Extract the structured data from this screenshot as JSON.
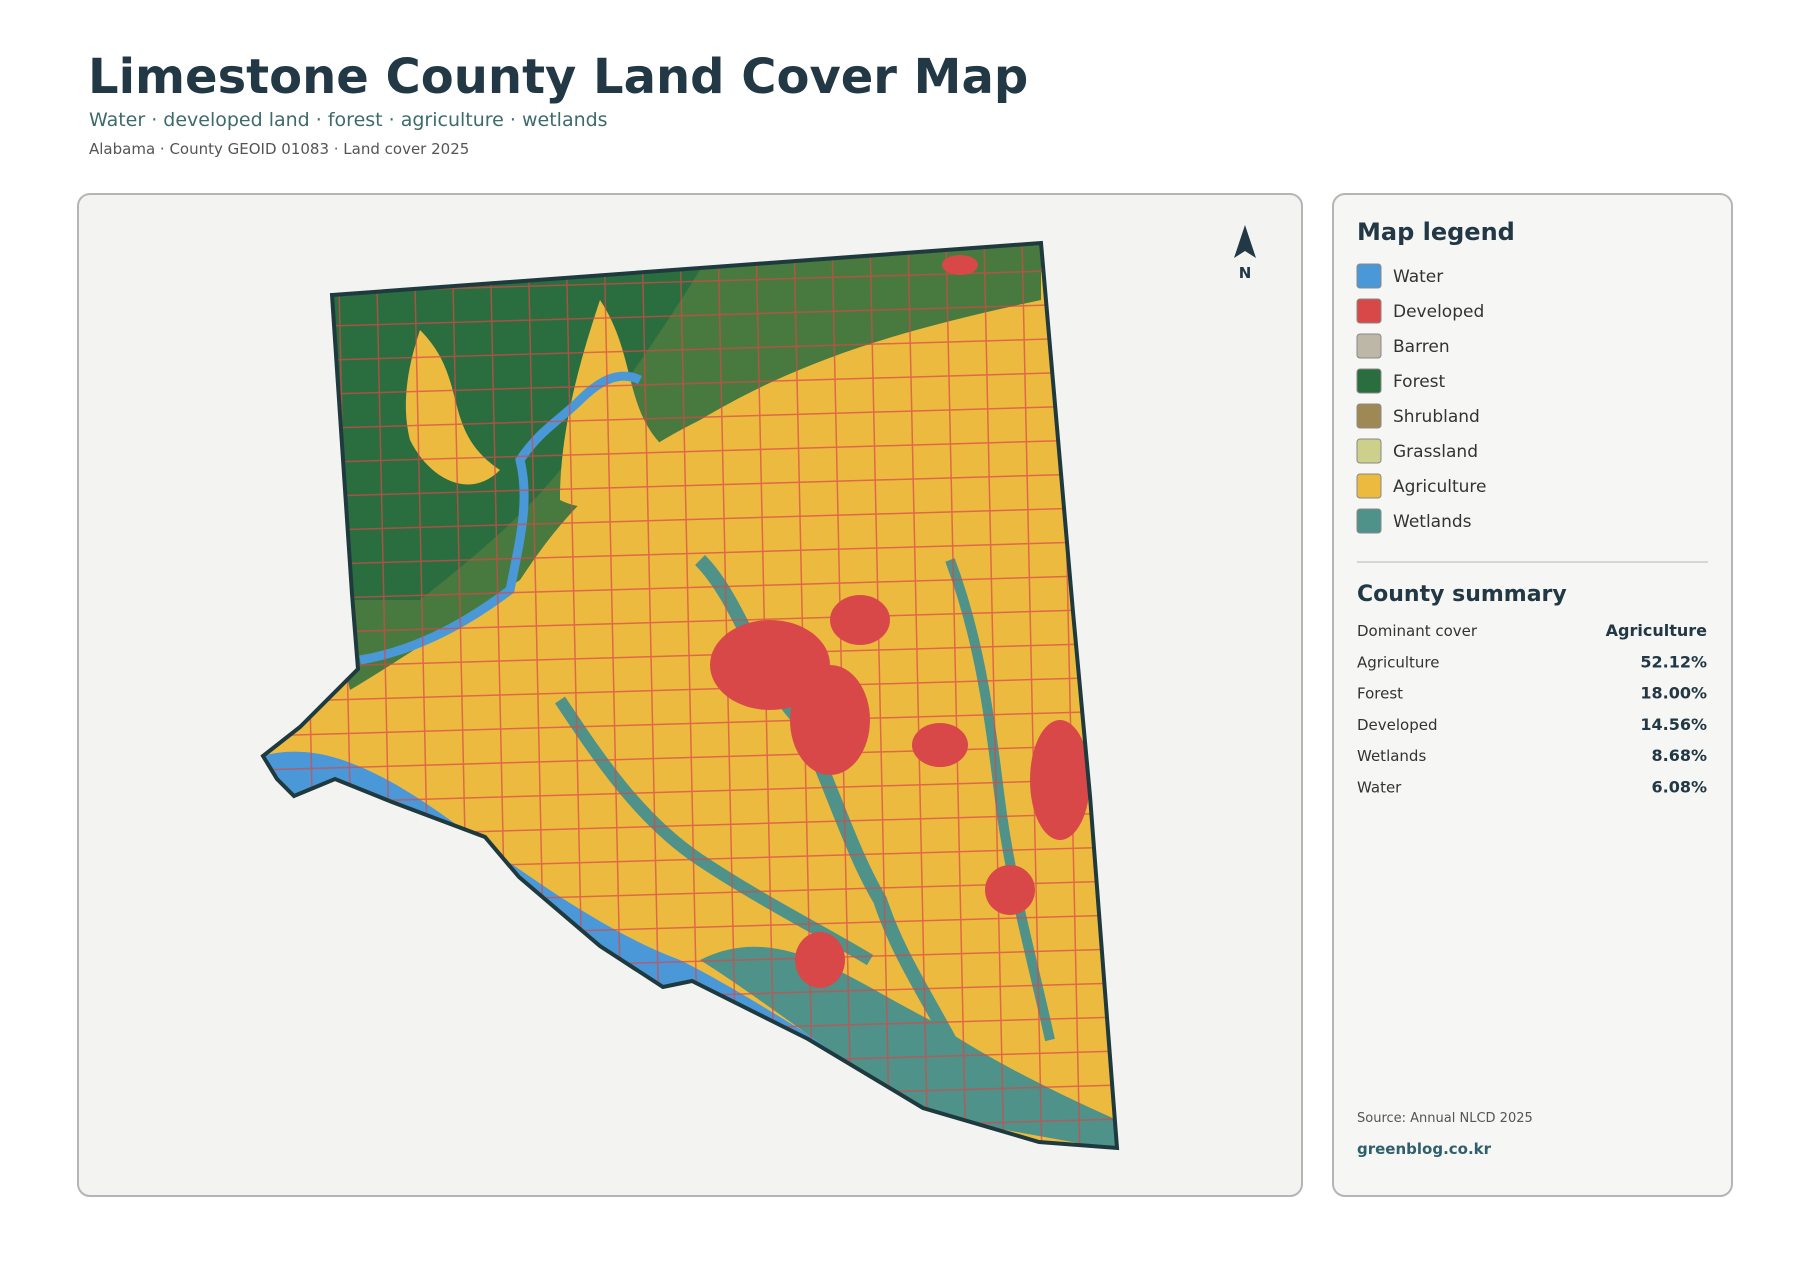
{
  "header": {
    "title": "Limestone County Land Cover Map",
    "subtitle": "Water · developed land · forest · agriculture · wetlands",
    "meta": "Alabama · County GEOID 01083 · Land cover 2025"
  },
  "map": {
    "north_label": "N"
  },
  "legend": {
    "title": "Map legend",
    "items": [
      {
        "label": "Water",
        "color": "#4a98d8"
      },
      {
        "label": "Developed",
        "color": "#d94848"
      },
      {
        "label": "Barren",
        "color": "#bcb7a6"
      },
      {
        "label": "Forest",
        "color": "#2a6e40"
      },
      {
        "label": "Shrubland",
        "color": "#a08855"
      },
      {
        "label": "Grassland",
        "color": "#cdd08a"
      },
      {
        "label": "Agriculture",
        "color": "#edba40"
      },
      {
        "label": "Wetlands",
        "color": "#4e9289"
      }
    ]
  },
  "summary": {
    "title": "County summary",
    "rows": [
      {
        "label": "Dominant cover",
        "value": "Agriculture"
      },
      {
        "label": "Agriculture",
        "value": "52.12%"
      },
      {
        "label": "Forest",
        "value": "18.00%"
      },
      {
        "label": "Developed",
        "value": "14.56%"
      },
      {
        "label": "Wetlands",
        "value": "8.68%"
      },
      {
        "label": "Water",
        "value": "6.08%"
      }
    ]
  },
  "footer": {
    "source": "Source: Annual NLCD 2025",
    "site": "greenblog.co.kr"
  }
}
